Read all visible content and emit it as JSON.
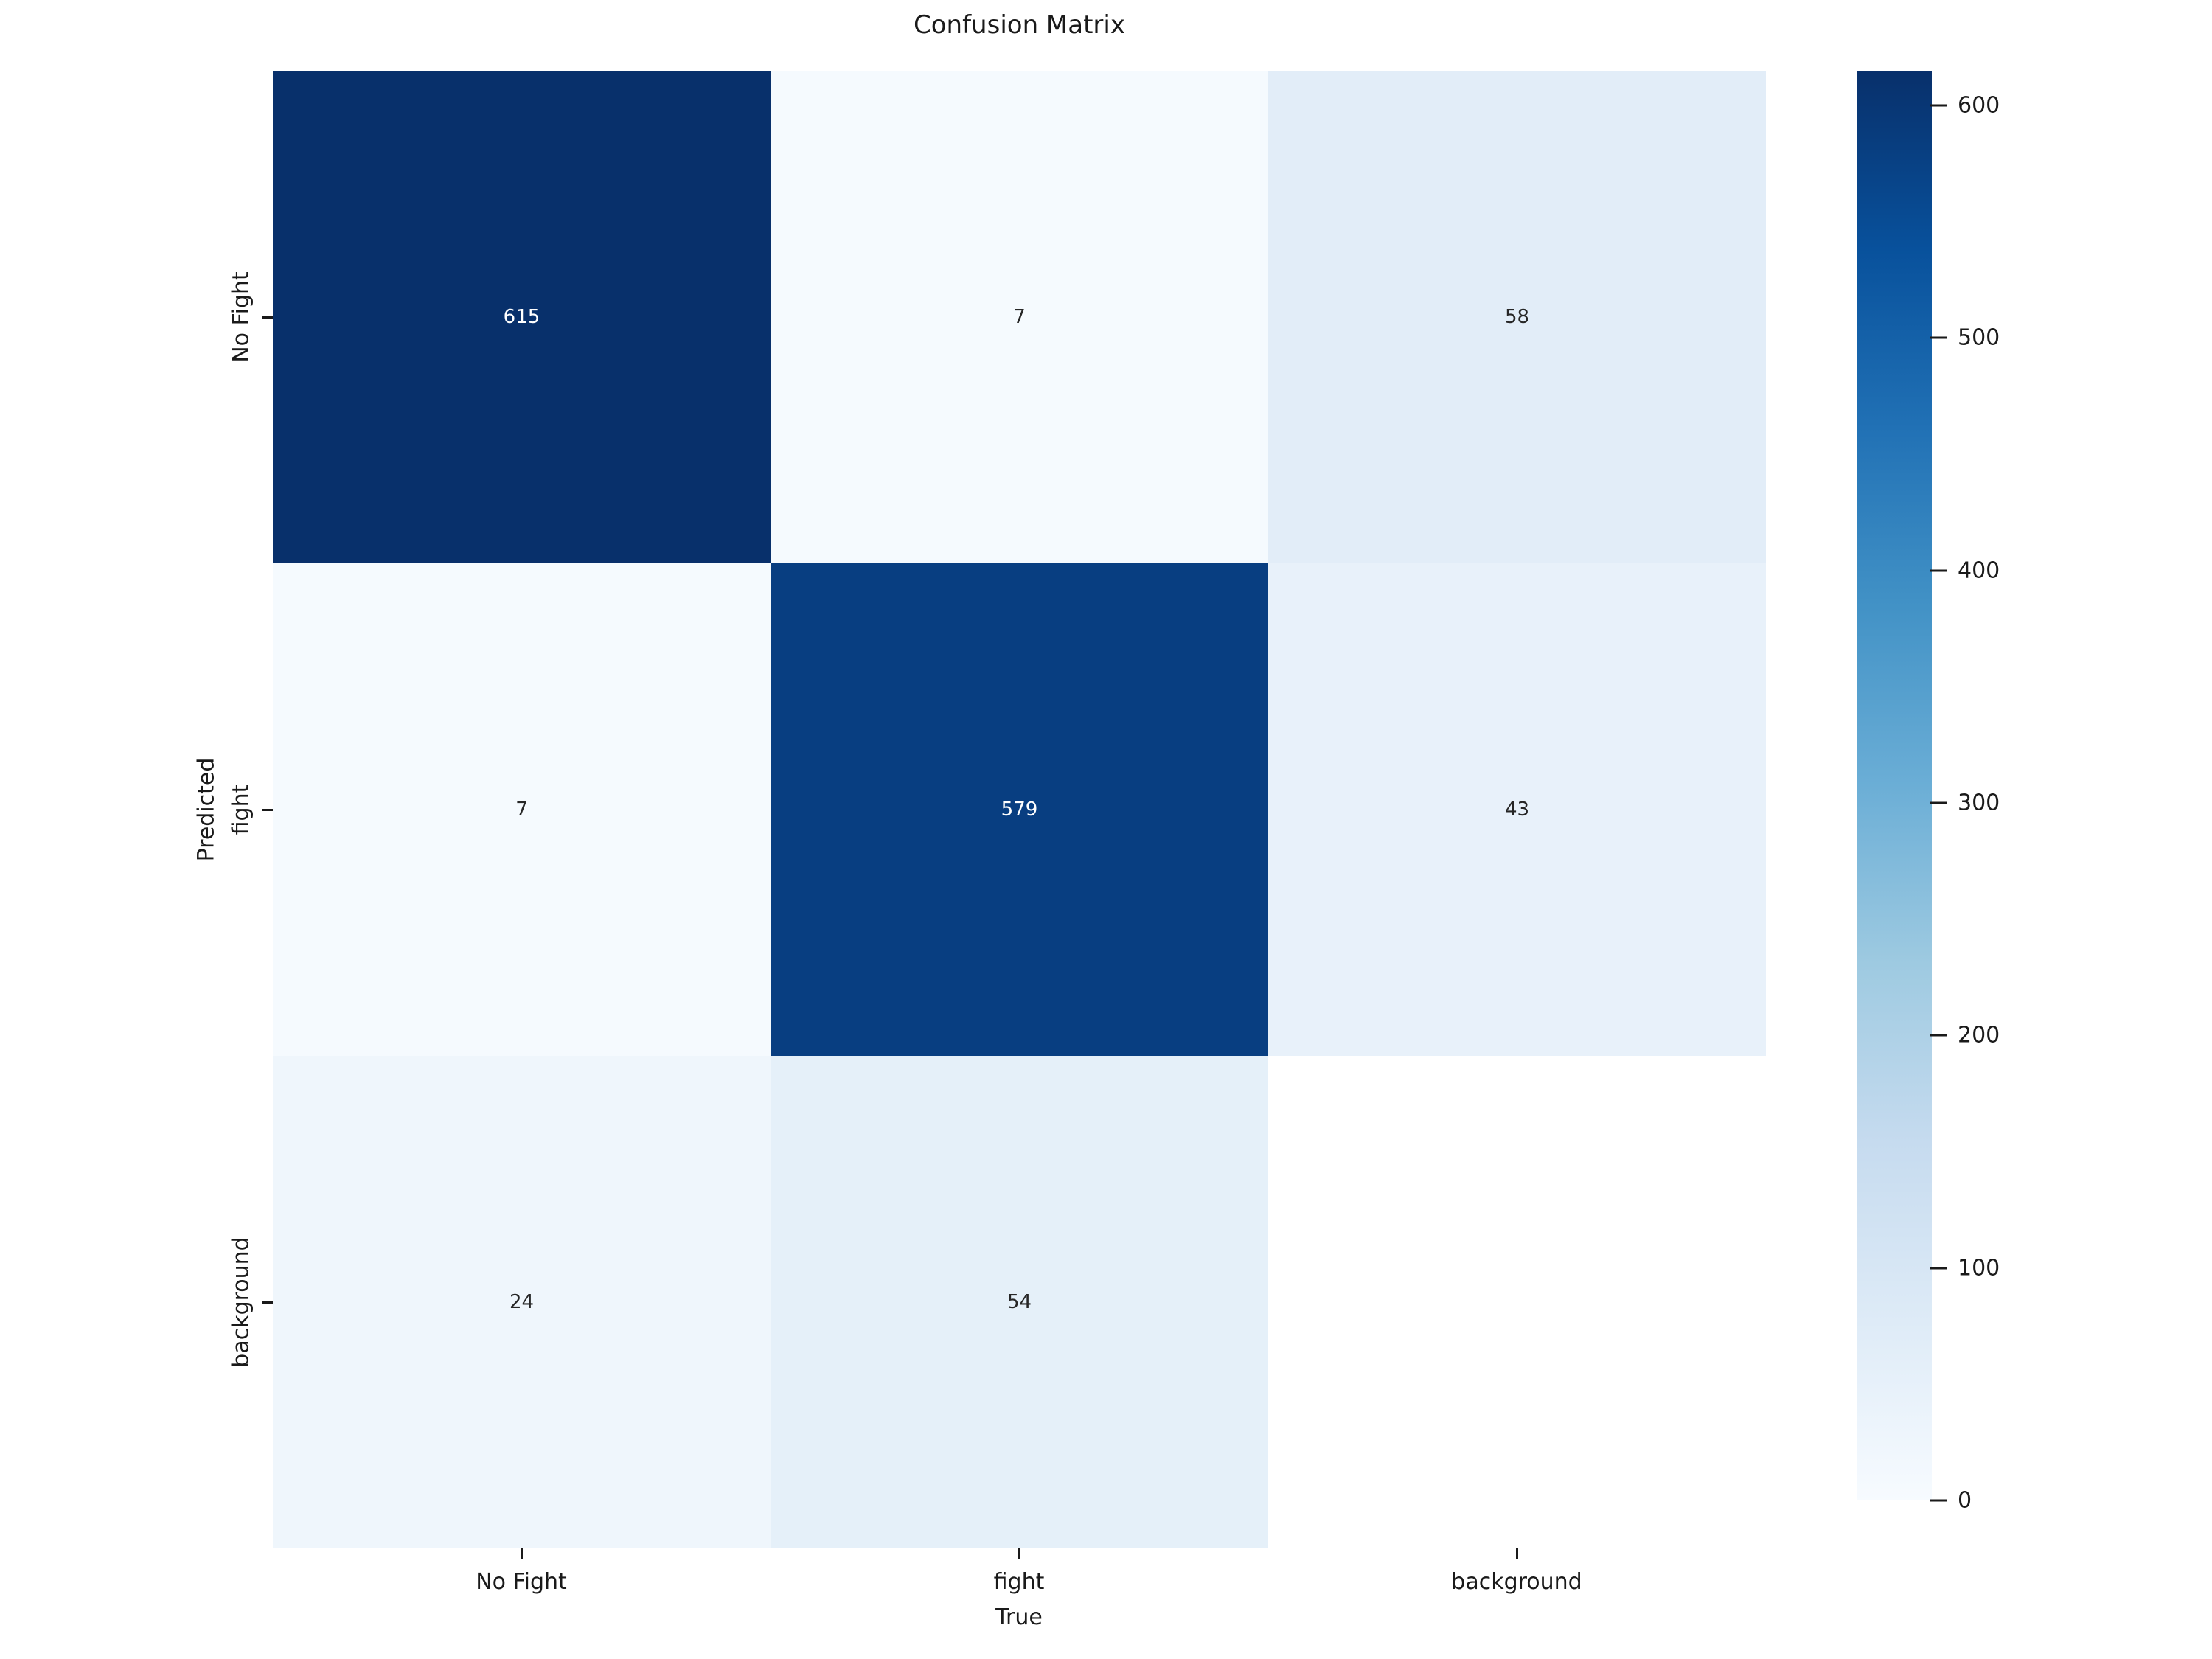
{
  "title": "Confusion Matrix",
  "chart_data": {
    "type": "heatmap",
    "title": "Confusion Matrix",
    "xlabel": "True",
    "ylabel": "Predicted",
    "x_categories": [
      "No Fight",
      "fight",
      "background"
    ],
    "y_categories": [
      "No Fight",
      "fight",
      "background"
    ],
    "values": [
      [
        615,
        7,
        58
      ],
      [
        7,
        579,
        43
      ],
      [
        24,
        54,
        null
      ]
    ],
    "colormap": "Blues",
    "vmin": 0,
    "vmax": 615,
    "colorbar_ticks": [
      0,
      100,
      200,
      300,
      400,
      500,
      600
    ],
    "legend_position": "right-colorbar",
    "grid": false,
    "annotated": true
  },
  "axes": {
    "xlabel": "True",
    "ylabel": "Predicted",
    "xtick_labels": [
      "No Fight",
      "fight",
      "background"
    ],
    "ytick_labels": [
      "No Fight",
      "fight",
      "background"
    ]
  },
  "cells": [
    {
      "label": "615",
      "style": "background:#08306b;color:#ffffff"
    },
    {
      "label": "7",
      "style": "background:#f5fafe;color:#262626"
    },
    {
      "label": "58",
      "style": "background:#e2edf8;color:#262626"
    },
    {
      "label": "7",
      "style": "background:#f5fafe;color:#262626"
    },
    {
      "label": "579",
      "style": "background:#083e81;color:#ffffff"
    },
    {
      "label": "43",
      "style": "background:#e8f1fa;color:#262626"
    },
    {
      "label": "24",
      "style": "background:#eff6fc;color:#262626"
    },
    {
      "label": "54",
      "style": "background:#e5f0f9;color:#262626"
    },
    {
      "label": "",
      "style": "background:#ffffff;color:#262626"
    }
  ],
  "colorbar": {
    "gradient_style": "background:linear-gradient(to bottom,#08306b 0%,#08519c 12.5%,#2171b5 25%,#4292c6 37.5%,#6baed6 50%,#9ecae1 62.5%,#c6dbef 75%,#deebf7 87.5%,#f7fbff 100%)",
    "ticks": [
      {
        "label": "600",
        "style": "top:143px"
      },
      {
        "label": "500",
        "style": "top:458px"
      },
      {
        "label": "400",
        "style": "top:774px"
      },
      {
        "label": "300",
        "style": "top:1089px"
      },
      {
        "label": "200",
        "style": "top:1404px"
      },
      {
        "label": "100",
        "style": "top:1720px"
      },
      {
        "label": "0",
        "style": "top:2035px"
      }
    ]
  },
  "colors": {
    "max_cell": "#08306b",
    "min_cell": "#f7fbff",
    "text": "#262626",
    "background": "#ffffff"
  }
}
